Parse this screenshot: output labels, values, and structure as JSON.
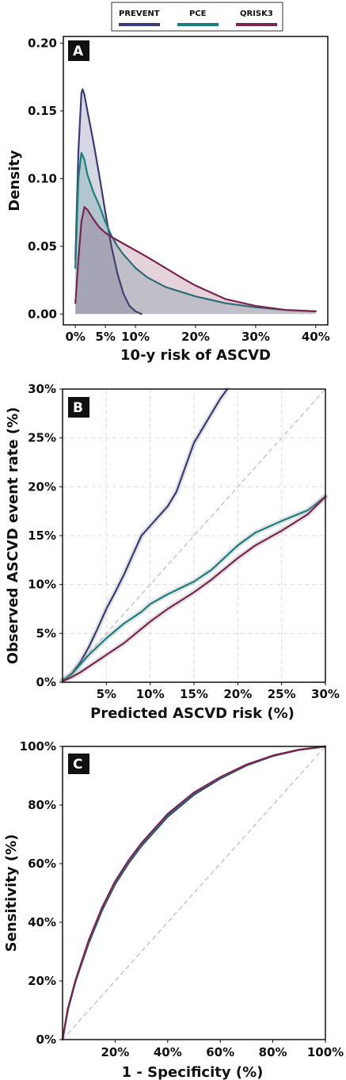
{
  "colors": {
    "PREVENT": "#3b3a78",
    "PCE": "#17807e",
    "QRISK3": "#7d2350",
    "diag": "#bbbbbb",
    "grid": "#dddddd"
  },
  "legend": {
    "placement": "top-center",
    "items": [
      {
        "name": "PREVENT",
        "color_key": "PREVENT"
      },
      {
        "name": "PCE",
        "color_key": "PCE"
      },
      {
        "name": "QRISK3",
        "color_key": "QRISK3"
      }
    ]
  },
  "chart_data": [
    {
      "panel": "A",
      "type": "area",
      "xlabel": "10-y risk of ASCVD",
      "ylabel": "Density",
      "xlim": [
        -0.02,
        0.42
      ],
      "ylim": [
        -0.008,
        0.205
      ],
      "xticks": [
        {
          "v": 0,
          "label": "0%"
        },
        {
          "v": 0.05,
          "label": "5%"
        },
        {
          "v": 0.1,
          "label": "10%"
        },
        {
          "v": 0.2,
          "label": "20%"
        },
        {
          "v": 0.3,
          "label": "30%"
        },
        {
          "v": 0.4,
          "label": "40%"
        }
      ],
      "yticks": [
        {
          "v": 0,
          "label": "0.00"
        },
        {
          "v": 0.05,
          "label": "0.05"
        },
        {
          "v": 0.1,
          "label": "0.10"
        },
        {
          "v": 0.15,
          "label": "0.15"
        },
        {
          "v": 0.2,
          "label": "0.20"
        }
      ],
      "grid": false,
      "series": [
        {
          "name": "PREVENT",
          "color_key": "PREVENT",
          "fill_opacity": 0.2,
          "points": [
            [
              0.0,
              0.04
            ],
            [
              0.005,
              0.12
            ],
            [
              0.01,
              0.163
            ],
            [
              0.012,
              0.166
            ],
            [
              0.015,
              0.162
            ],
            [
              0.02,
              0.15
            ],
            [
              0.03,
              0.127
            ],
            [
              0.04,
              0.102
            ],
            [
              0.05,
              0.075
            ],
            [
              0.06,
              0.05
            ],
            [
              0.07,
              0.03
            ],
            [
              0.08,
              0.015
            ],
            [
              0.09,
              0.006
            ],
            [
              0.1,
              0.002
            ],
            [
              0.11,
              0.0
            ]
          ]
        },
        {
          "name": "PCE",
          "color_key": "PCE",
          "fill_opacity": 0.2,
          "points": [
            [
              0.0,
              0.034
            ],
            [
              0.005,
              0.1
            ],
            [
              0.01,
              0.119
            ],
            [
              0.015,
              0.114
            ],
            [
              0.02,
              0.103
            ],
            [
              0.03,
              0.09
            ],
            [
              0.04,
              0.08
            ],
            [
              0.05,
              0.068
            ],
            [
              0.06,
              0.058
            ],
            [
              0.07,
              0.05
            ],
            [
              0.08,
              0.044
            ],
            [
              0.1,
              0.034
            ],
            [
              0.12,
              0.027
            ],
            [
              0.15,
              0.02
            ],
            [
              0.2,
              0.013
            ],
            [
              0.25,
              0.008
            ],
            [
              0.3,
              0.005
            ],
            [
              0.35,
              0.003
            ],
            [
              0.4,
              0.002
            ]
          ]
        },
        {
          "name": "QRISK3",
          "color_key": "QRISK3",
          "fill_opacity": 0.2,
          "points": [
            [
              0.0,
              0.008
            ],
            [
              0.005,
              0.04
            ],
            [
              0.01,
              0.068
            ],
            [
              0.015,
              0.079
            ],
            [
              0.02,
              0.077
            ],
            [
              0.03,
              0.07
            ],
            [
              0.04,
              0.064
            ],
            [
              0.05,
              0.06
            ],
            [
              0.06,
              0.057
            ],
            [
              0.08,
              0.052
            ],
            [
              0.1,
              0.047
            ],
            [
              0.12,
              0.042
            ],
            [
              0.15,
              0.034
            ],
            [
              0.18,
              0.026
            ],
            [
              0.2,
              0.021
            ],
            [
              0.25,
              0.011
            ],
            [
              0.3,
              0.006
            ],
            [
              0.35,
              0.003
            ],
            [
              0.4,
              0.002
            ]
          ]
        }
      ]
    },
    {
      "panel": "B",
      "type": "line",
      "xlabel": "Predicted ASCVD risk (%)",
      "ylabel": "Observed ASCVD event rate (%)",
      "xlim": [
        0,
        0.3
      ],
      "ylim": [
        0,
        0.3
      ],
      "xticks": [
        {
          "v": 0.05,
          "label": "5%"
        },
        {
          "v": 0.1,
          "label": "10%"
        },
        {
          "v": 0.15,
          "label": "15%"
        },
        {
          "v": 0.2,
          "label": "20%"
        },
        {
          "v": 0.25,
          "label": "25%"
        },
        {
          "v": 0.3,
          "label": "30%"
        }
      ],
      "yticks": [
        {
          "v": 0,
          "label": "0%"
        },
        {
          "v": 0.05,
          "label": "5%"
        },
        {
          "v": 0.1,
          "label": "10%"
        },
        {
          "v": 0.15,
          "label": "15%"
        },
        {
          "v": 0.2,
          "label": "20%"
        },
        {
          "v": 0.25,
          "label": "25%"
        },
        {
          "v": 0.3,
          "label": "30%"
        }
      ],
      "grid": true,
      "diagonal": true,
      "series": [
        {
          "name": "PREVENT",
          "color_key": "PREVENT",
          "points": [
            [
              0.0,
              0.002
            ],
            [
              0.01,
              0.008
            ],
            [
              0.02,
              0.02
            ],
            [
              0.03,
              0.036
            ],
            [
              0.04,
              0.055
            ],
            [
              0.05,
              0.075
            ],
            [
              0.06,
              0.092
            ],
            [
              0.07,
              0.11
            ],
            [
              0.08,
              0.13
            ],
            [
              0.09,
              0.15
            ],
            [
              0.1,
              0.16
            ],
            [
              0.11,
              0.17
            ],
            [
              0.12,
              0.18
            ],
            [
              0.13,
              0.195
            ],
            [
              0.14,
              0.22
            ],
            [
              0.15,
              0.245
            ],
            [
              0.16,
              0.26
            ],
            [
              0.17,
              0.275
            ],
            [
              0.18,
              0.29
            ],
            [
              0.188,
              0.3
            ]
          ]
        },
        {
          "name": "PCE",
          "color_key": "PCE",
          "points": [
            [
              0.0,
              0.002
            ],
            [
              0.01,
              0.008
            ],
            [
              0.02,
              0.018
            ],
            [
              0.03,
              0.028
            ],
            [
              0.05,
              0.045
            ],
            [
              0.07,
              0.06
            ],
            [
              0.09,
              0.072
            ],
            [
              0.1,
              0.08
            ],
            [
              0.12,
              0.09
            ],
            [
              0.15,
              0.103
            ],
            [
              0.17,
              0.115
            ],
            [
              0.2,
              0.14
            ],
            [
              0.22,
              0.153
            ],
            [
              0.25,
              0.165
            ],
            [
              0.28,
              0.176
            ],
            [
              0.3,
              0.19
            ]
          ]
        },
        {
          "name": "QRISK3",
          "color_key": "QRISK3",
          "points": [
            [
              0.0,
              0.001
            ],
            [
              0.01,
              0.005
            ],
            [
              0.02,
              0.01
            ],
            [
              0.03,
              0.016
            ],
            [
              0.05,
              0.028
            ],
            [
              0.07,
              0.04
            ],
            [
              0.1,
              0.062
            ],
            [
              0.12,
              0.075
            ],
            [
              0.15,
              0.092
            ],
            [
              0.17,
              0.105
            ],
            [
              0.2,
              0.127
            ],
            [
              0.22,
              0.14
            ],
            [
              0.25,
              0.155
            ],
            [
              0.28,
              0.172
            ],
            [
              0.3,
              0.19
            ]
          ]
        }
      ]
    },
    {
      "panel": "C",
      "type": "line",
      "xlabel": "1 - Specificity (%)",
      "ylabel": "Sensitivity (%)",
      "xlim": [
        0,
        1
      ],
      "ylim": [
        0,
        1
      ],
      "xticks": [
        {
          "v": 0.2,
          "label": "20%"
        },
        {
          "v": 0.4,
          "label": "40%"
        },
        {
          "v": 0.6,
          "label": "60%"
        },
        {
          "v": 0.8,
          "label": "80%"
        },
        {
          "v": 1.0,
          "label": "100%"
        }
      ],
      "yticks": [
        {
          "v": 0,
          "label": "0%"
        },
        {
          "v": 0.2,
          "label": "20%"
        },
        {
          "v": 0.4,
          "label": "40%"
        },
        {
          "v": 0.6,
          "label": "60%"
        },
        {
          "v": 0.8,
          "label": "80%"
        },
        {
          "v": 1.0,
          "label": "100%"
        }
      ],
      "grid": false,
      "diagonal": true,
      "series": [
        {
          "name": "PREVENT",
          "color_key": "PREVENT",
          "points": [
            [
              0.0,
              0.0
            ],
            [
              0.02,
              0.1
            ],
            [
              0.05,
              0.2
            ],
            [
              0.1,
              0.33
            ],
            [
              0.15,
              0.44
            ],
            [
              0.2,
              0.53
            ],
            [
              0.25,
              0.6
            ],
            [
              0.3,
              0.66
            ],
            [
              0.4,
              0.76
            ],
            [
              0.5,
              0.835
            ],
            [
              0.6,
              0.89
            ],
            [
              0.7,
              0.935
            ],
            [
              0.8,
              0.967
            ],
            [
              0.9,
              0.988
            ],
            [
              1.0,
              1.0
            ]
          ]
        },
        {
          "name": "PCE",
          "color_key": "PCE",
          "points": [
            [
              0.0,
              0.0
            ],
            [
              0.02,
              0.1
            ],
            [
              0.05,
              0.2
            ],
            [
              0.1,
              0.335
            ],
            [
              0.15,
              0.445
            ],
            [
              0.2,
              0.535
            ],
            [
              0.25,
              0.605
            ],
            [
              0.3,
              0.665
            ],
            [
              0.4,
              0.765
            ],
            [
              0.5,
              0.84
            ],
            [
              0.6,
              0.893
            ],
            [
              0.7,
              0.937
            ],
            [
              0.8,
              0.968
            ],
            [
              0.9,
              0.989
            ],
            [
              1.0,
              1.0
            ]
          ]
        },
        {
          "name": "QRISK3",
          "color_key": "QRISK3",
          "points": [
            [
              0.0,
              0.0
            ],
            [
              0.02,
              0.105
            ],
            [
              0.05,
              0.205
            ],
            [
              0.1,
              0.34
            ],
            [
              0.15,
              0.45
            ],
            [
              0.2,
              0.54
            ],
            [
              0.25,
              0.61
            ],
            [
              0.3,
              0.67
            ],
            [
              0.4,
              0.77
            ],
            [
              0.5,
              0.843
            ],
            [
              0.6,
              0.895
            ],
            [
              0.7,
              0.938
            ],
            [
              0.8,
              0.969
            ],
            [
              0.9,
              0.989
            ],
            [
              1.0,
              1.0
            ]
          ]
        }
      ]
    }
  ]
}
